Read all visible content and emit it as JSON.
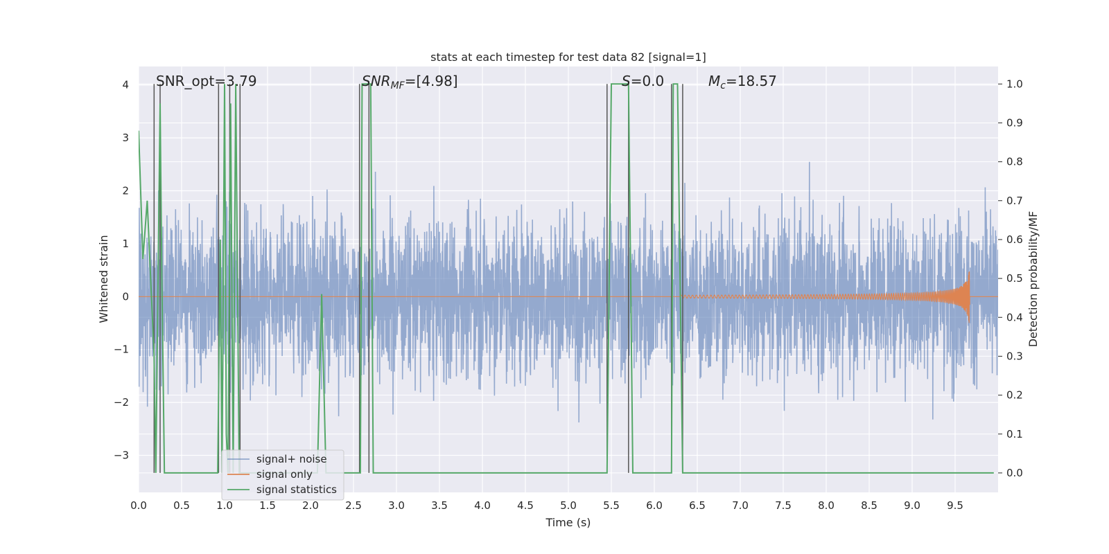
{
  "chart_data": {
    "type": "line",
    "title": "stats at each timestep for test data 82 [signal=1]",
    "xlabel": "Time (s)",
    "ylabel": "Whitened strain",
    "ylabel_right": "Detection probability/MF",
    "xlim": [
      0.0,
      10.0
    ],
    "ylim": [
      -3.7,
      4.35
    ],
    "ylim_right": [
      -0.05,
      1.045
    ],
    "x_ticks": [
      "0.0",
      "0.5",
      "1.0",
      "1.5",
      "2.0",
      "2.5",
      "3.0",
      "3.5",
      "4.0",
      "4.5",
      "5.0",
      "5.5",
      "6.0",
      "6.5",
      "7.0",
      "7.5",
      "8.0",
      "8.5",
      "9.0",
      "9.5"
    ],
    "y_ticks": [
      "4",
      "3",
      "2",
      "1",
      "0",
      "−1",
      "−2",
      "−3"
    ],
    "y_tick_values": [
      4,
      3,
      2,
      1,
      0,
      -1,
      -2,
      -3
    ],
    "y_right_ticks": [
      "1.0",
      "0.9",
      "0.8",
      "0.7",
      "0.6",
      "0.5",
      "0.4",
      "0.3",
      "0.2",
      "0.1",
      "0.0"
    ],
    "y_right_tick_values": [
      1.0,
      0.9,
      0.8,
      0.7,
      0.6,
      0.5,
      0.4,
      0.3,
      0.2,
      0.1,
      0.0
    ],
    "grid": true,
    "legend_position": "lower-left",
    "annotations": {
      "snr_opt": "SNR_opt=3.79",
      "snr_mf_sym": "SNR",
      "snr_mf_sub": "MF",
      "snr_mf_val": "=[4.98]",
      "s_sym": "S",
      "s_val": "=0.0",
      "mc_sym": "M",
      "mc_sub": "c",
      "mc_val": "=18.57"
    },
    "series": [
      {
        "name": "signal+ noise",
        "color": "#4c72b0",
        "description": "whitened strain, noise band roughly within ±2.8",
        "noise_envelope": 1.2,
        "peak_values": [
          3.1,
          -3.3
        ]
      },
      {
        "name": "signal only",
        "color": "#dd8452",
        "chirp_start_x": 6.3,
        "chirp_end_x": 9.67,
        "chirp_peak_amplitude": 0.6
      },
      {
        "name": "signal statistics",
        "color": "#55a868",
        "axis": "right",
        "x": [
          0.0,
          0.05,
          0.1,
          0.15,
          0.18,
          0.2,
          0.25,
          0.27,
          0.3,
          0.32,
          0.92,
          0.95,
          0.97,
          1.0,
          1.02,
          1.04,
          1.07,
          1.1,
          1.13,
          1.17,
          1.2,
          1.22,
          2.0,
          2.08,
          2.13,
          2.18,
          2.22,
          2.55,
          2.58,
          2.6,
          2.65,
          2.7,
          2.73,
          5.45,
          5.5,
          5.7,
          5.75,
          6.2,
          6.22,
          6.27,
          6.33,
          6.37,
          9.95
        ],
        "values": [
          0.88,
          0.55,
          0.7,
          0.45,
          0.3,
          0.0,
          0.95,
          0.5,
          0.0,
          0.0,
          0.0,
          0.6,
          0.0,
          1.0,
          0.1,
          0.0,
          0.95,
          0.0,
          1.0,
          0.0,
          0.0,
          0.0,
          0.0,
          0.0,
          0.46,
          0.0,
          0.0,
          0.0,
          0.0,
          1.0,
          1.0,
          1.0,
          0.0,
          0.0,
          1.0,
          1.0,
          0.0,
          0.0,
          1.0,
          1.0,
          0.0,
          0.0,
          0.0
        ]
      },
      {
        "name": "",
        "color": "#555555",
        "description": "vertical threshold markers",
        "x": [
          0.18,
          0.25,
          0.93,
          1.06,
          1.18,
          2.57,
          2.68,
          5.45,
          5.7,
          6.2,
          6.33
        ]
      }
    ]
  }
}
